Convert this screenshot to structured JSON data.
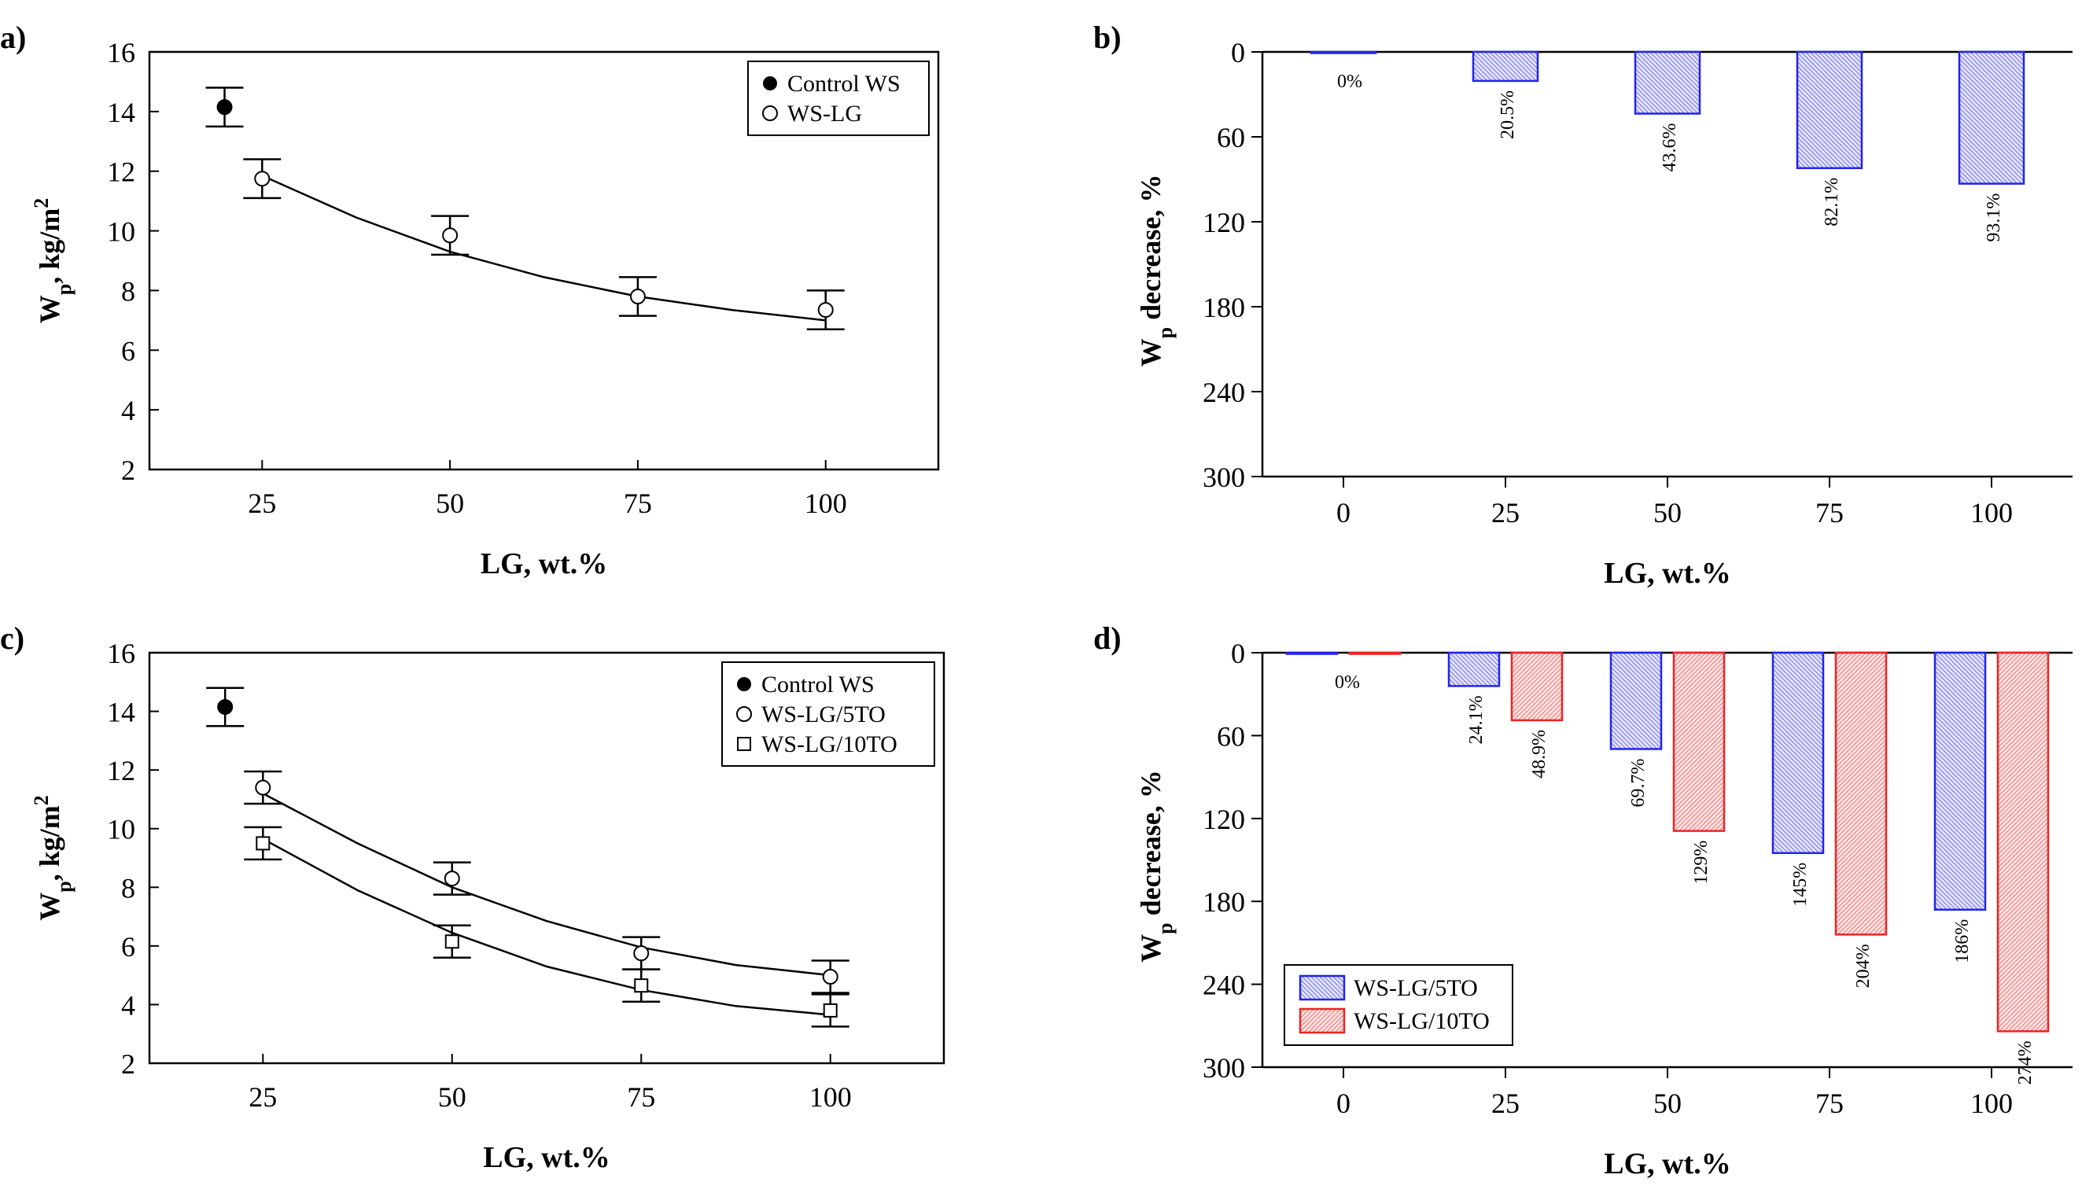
{
  "chart_data": [
    {
      "panel": "a)",
      "type": "scatter",
      "xlabel": "LG, wt.%",
      "ylabel_main": "W",
      "ylabel_sub": "p",
      "ylabel_rest": ", kg/m",
      "ylabel_sup": "2",
      "xlim": [
        10,
        115
      ],
      "ylim": [
        2,
        16
      ],
      "xticks": [
        25,
        50,
        75,
        100
      ],
      "yticks": [
        2,
        4,
        6,
        8,
        10,
        12,
        14,
        16
      ],
      "legend_position": "top-right",
      "series": [
        {
          "name": "Control WS",
          "marker": "filled-circle",
          "points": [
            {
              "x": 20,
              "y": 14.15,
              "err": 0.65
            }
          ]
        },
        {
          "name": "WS-LG",
          "marker": "open-circle",
          "points": [
            {
              "x": 25,
              "y": 11.75,
              "err": 0.65
            },
            {
              "x": 50,
              "y": 9.85,
              "err": 0.65
            },
            {
              "x": 75,
              "y": 7.8,
              "err": 0.65
            },
            {
              "x": 100,
              "y": 7.35,
              "err": 0.65
            }
          ]
        }
      ],
      "fits": [
        {
          "x": [
            25,
            37.5,
            50,
            62.5,
            75,
            87.5,
            100
          ],
          "y": [
            11.85,
            10.45,
            9.3,
            8.45,
            7.8,
            7.35,
            7.0
          ]
        }
      ]
    },
    {
      "panel": "b)",
      "type": "bar",
      "xlabel": "LG, wt.%",
      "ylabel_main": "W",
      "ylabel_sub": "p",
      "ylabel_rest": " decrease, %",
      "ylim": [
        0,
        300
      ],
      "y_inverted": true,
      "xlim": [
        -12.5,
        112.5
      ],
      "xticks": [
        0,
        25,
        50,
        75,
        100
      ],
      "yticks": [
        0,
        60,
        120,
        180,
        240,
        300
      ],
      "legend_position": "none",
      "series": [
        {
          "name": "WS-LG",
          "color": "#2323ee",
          "x": [
            0,
            25,
            50,
            75,
            100
          ],
          "values": [
            0.5,
            20.5,
            43.6,
            82.1,
            93.1
          ],
          "labels": [
            "0%",
            "20.5%",
            "43.6%",
            "82.1%",
            "93.1%"
          ]
        }
      ]
    },
    {
      "panel": "c)",
      "type": "scatter",
      "xlabel": "LG, wt.%",
      "ylabel_main": "W",
      "ylabel_sub": "p",
      "ylabel_rest": ", kg/m",
      "ylabel_sup": "2",
      "xlim": [
        10,
        115
      ],
      "ylim": [
        2,
        16
      ],
      "xticks": [
        25,
        50,
        75,
        100
      ],
      "yticks": [
        2,
        4,
        6,
        8,
        10,
        12,
        14,
        16
      ],
      "legend_position": "top-right",
      "series": [
        {
          "name": "Control WS",
          "marker": "filled-circle",
          "points": [
            {
              "x": 20,
              "y": 14.15,
              "err": 0.65
            }
          ]
        },
        {
          "name": "WS-LG/5TO",
          "marker": "open-circle",
          "points": [
            {
              "x": 25,
              "y": 11.4,
              "err": 0.55
            },
            {
              "x": 50,
              "y": 8.3,
              "err": 0.55
            },
            {
              "x": 75,
              "y": 5.75,
              "err": 0.55
            },
            {
              "x": 100,
              "y": 4.95,
              "err": 0.55
            }
          ]
        },
        {
          "name": "WS-LG/10TO",
          "marker": "open-square",
          "points": [
            {
              "x": 25,
              "y": 9.5,
              "err": 0.55
            },
            {
              "x": 50,
              "y": 6.15,
              "err": 0.55
            },
            {
              "x": 75,
              "y": 4.65,
              "err": 0.55
            },
            {
              "x": 100,
              "y": 3.8,
              "err": 0.55
            }
          ]
        }
      ],
      "fits": [
        {
          "x": [
            25,
            37.5,
            50,
            62.5,
            75,
            87.5,
            100
          ],
          "y": [
            11.2,
            9.5,
            8.0,
            6.85,
            5.95,
            5.35,
            5.0
          ]
        },
        {
          "x": [
            25,
            37.5,
            50,
            62.5,
            75,
            87.5,
            100
          ],
          "y": [
            9.65,
            7.9,
            6.45,
            5.3,
            4.5,
            3.95,
            3.65
          ]
        }
      ]
    },
    {
      "panel": "d)",
      "type": "bar",
      "xlabel": "LG, wt.%",
      "ylabel_main": "W",
      "ylabel_sub": "p",
      "ylabel_rest": " decrease, %",
      "ylim": [
        0,
        300
      ],
      "y_inverted": true,
      "xlim": [
        -12.5,
        112.5
      ],
      "xticks": [
        0,
        25,
        50,
        75,
        100
      ],
      "yticks": [
        0,
        60,
        120,
        180,
        240,
        300
      ],
      "legend_position": "bottom-left",
      "series": [
        {
          "name": "WS-LG/5TO",
          "color": "#2323ee",
          "x": [
            0,
            25,
            50,
            75,
            100
          ],
          "values": [
            0.5,
            24.1,
            69.7,
            145,
            186
          ],
          "labels": [
            "",
            "24.1%",
            "69.7%",
            "145%",
            "186%"
          ]
        },
        {
          "name": "WS-LG/10TO",
          "color": "#ee2323",
          "x": [
            0,
            25,
            50,
            75,
            100
          ],
          "values": [
            0.5,
            48.9,
            129,
            204,
            274
          ],
          "labels": [
            "",
            "48.9%",
            "129%",
            "204%",
            "274%"
          ]
        }
      ],
      "center_labels": [
        {
          "x": 0,
          "text": "0%"
        }
      ]
    }
  ]
}
